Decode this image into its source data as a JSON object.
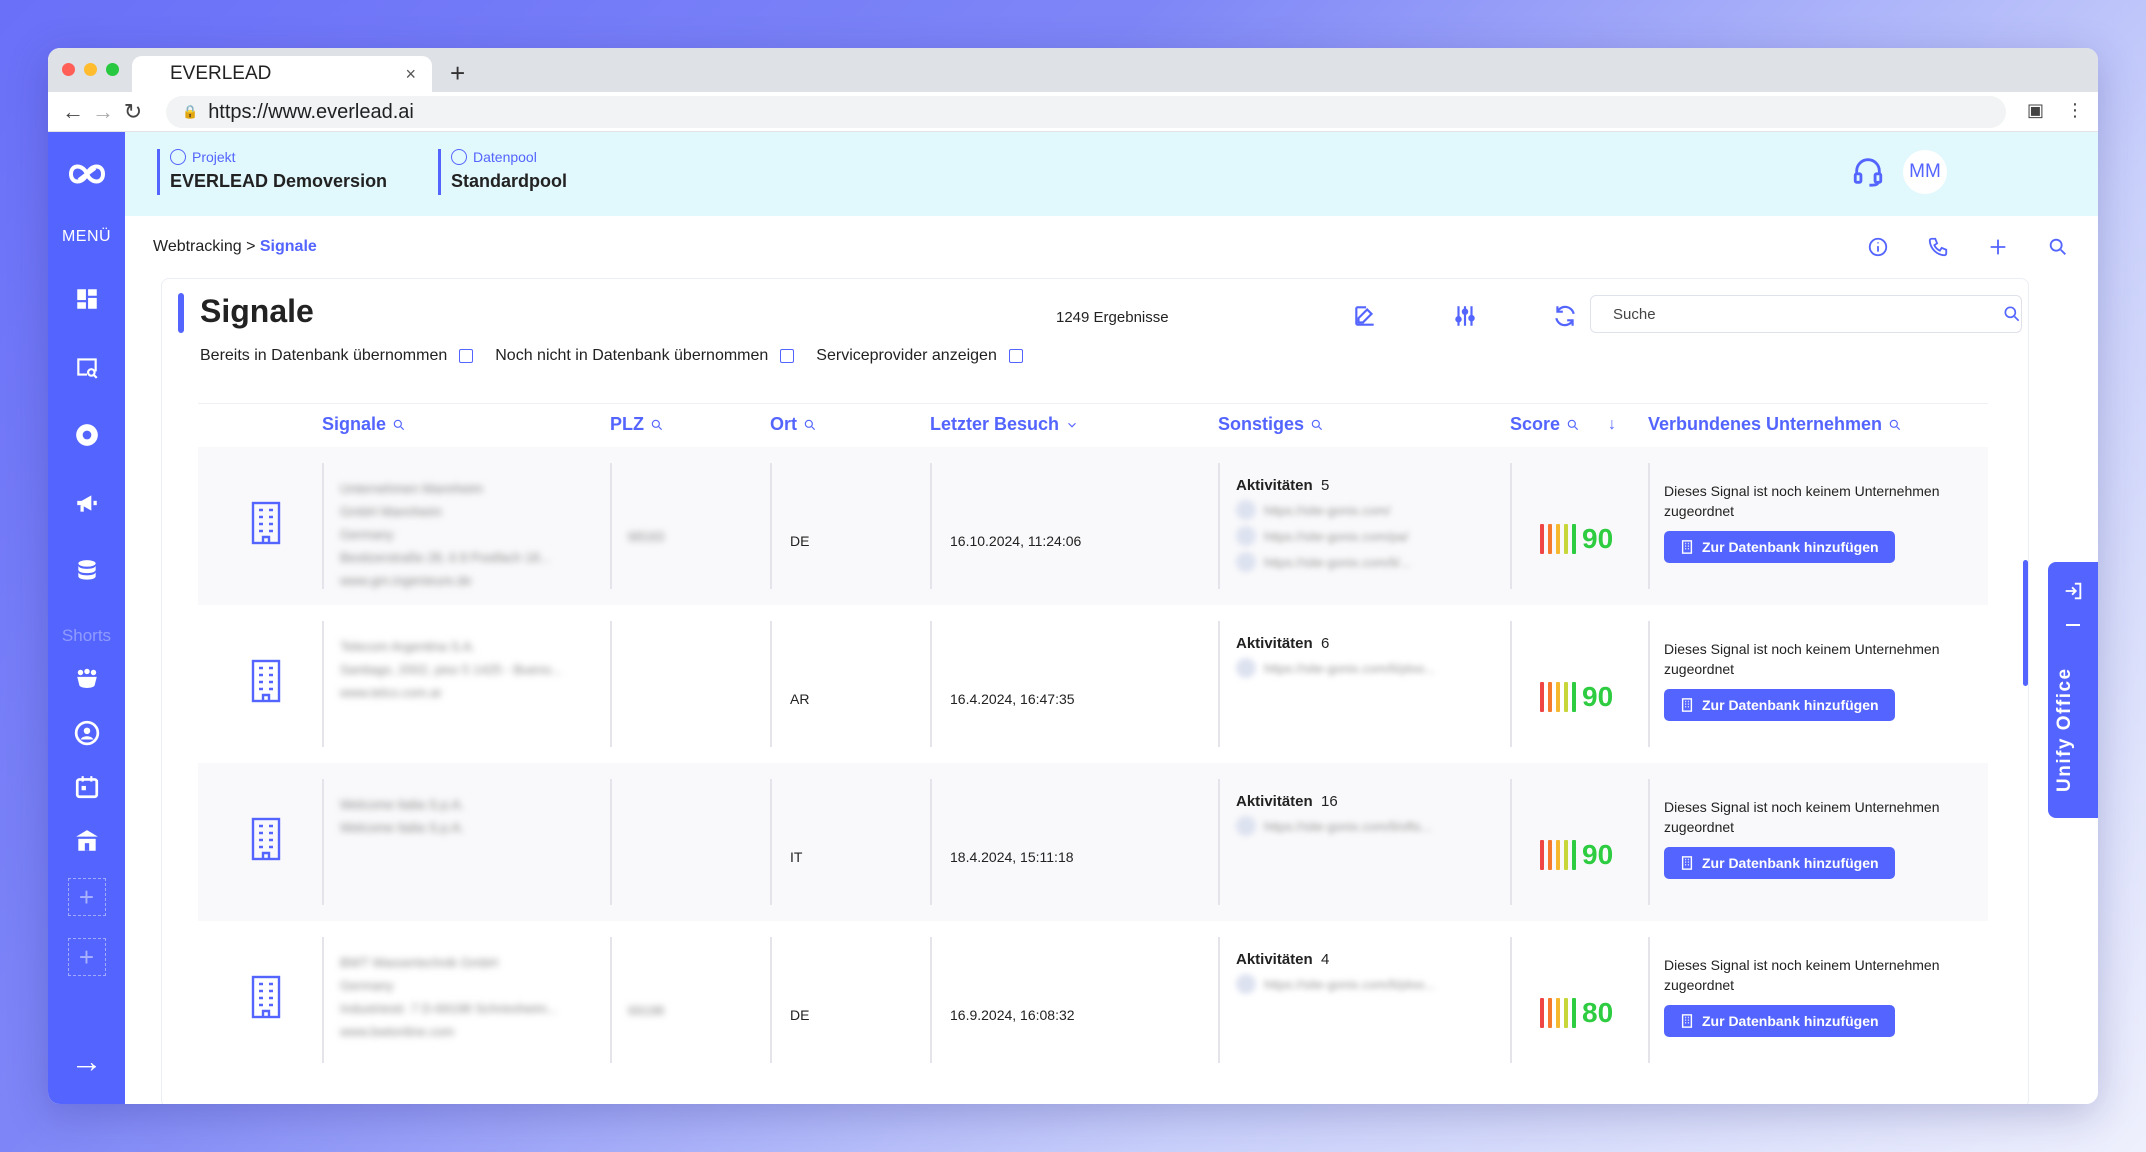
{
  "browser": {
    "tab_title": "EVERLEAD",
    "tab_close": "×",
    "new_tab": "+",
    "url": "https://www.everlead.ai"
  },
  "sidebar": {
    "menu_label": "MENÜ",
    "shorts_label": "Shorts"
  },
  "header": {
    "projekt_label": "Projekt",
    "projekt_value": "EVERLEAD Demoversion",
    "datenpool_label": "Datenpool",
    "datenpool_value": "Standardpool",
    "avatar_initials": "MM"
  },
  "breadcrumb": {
    "parent": "Webtracking",
    "separator": " > ",
    "current": "Signale"
  },
  "page": {
    "title": "Signale",
    "results": "1249 Ergebnisse",
    "search_placeholder": "Suche"
  },
  "filters": [
    "Bereits in Datenbank übernommen",
    "Noch nicht in Datenbank übernommen",
    "Serviceprovider anzeigen"
  ],
  "columns": {
    "signale": "Signale",
    "plz": "PLZ",
    "ort": "Ort",
    "letzter_besuch": "Letzter Besuch",
    "sonstiges": "Sonstiges",
    "score": "Score",
    "verbundenes": "Verbundenes Unternehmen"
  },
  "rows": [
    {
      "company_blur": [
        "Unternehmen Mannheim",
        "GmbH Mannheim",
        "Germany",
        "Besitzerstraße 28, 6 8 Postfach 18...",
        "www.gm.ingenieure.de"
      ],
      "plz_blur": "68163",
      "ort": "DE",
      "last_visit": "16.10.2024, 11:24:06",
      "aktivitaeten_label": "Aktivitäten",
      "aktivitaeten_count": "5",
      "links_blur": [
        "https://site-gonix.com/",
        "https://site-gonix.com/pa/",
        "https://site-gonix.com/li/..."
      ],
      "score": "90",
      "company_msg": "Dieses Signal ist noch keinem Unternehmen zugeordnet",
      "add_label": "Zur Datenbank hinzufügen"
    },
    {
      "company_blur": [
        "Telecom Argentina S.A.",
        "Santiago, 2002, piso 5 1425 - Bueno...",
        "www.telco.com.ar"
      ],
      "plz_blur": "",
      "ort": "AR",
      "last_visit": "16.4.2024, 16:47:35",
      "aktivitaeten_label": "Aktivitäten",
      "aktivitaeten_count": "6",
      "links_blur": [
        "https://site-gonix.com/li/ploo..."
      ],
      "score": "90",
      "company_msg": "Dieses Signal ist noch keinem Unternehmen zugeordnet",
      "add_label": "Zur Datenbank hinzufügen"
    },
    {
      "company_blur": [
        "Welcome Italia S.p.A.",
        "Welcome Italia S.p.A."
      ],
      "plz_blur": "",
      "ort": "IT",
      "last_visit": "18.4.2024, 15:11:18",
      "aktivitaeten_label": "Aktivitäten",
      "aktivitaeten_count": "16",
      "links_blur": [
        "https://site-gonix.com/li/ofts..."
      ],
      "score": "90",
      "company_msg": "Dieses Signal ist noch keinem Unternehmen zugeordnet",
      "add_label": "Zur Datenbank hinzufügen"
    },
    {
      "company_blur": [
        "BWT Wassertechnik GmbH",
        "Germany",
        "Industriestr. 7 D-69198 Schriesheim...",
        "www.bwtonline.com"
      ],
      "plz_blur": "69198",
      "ort": "DE",
      "last_visit": "16.9.2024, 16:08:32",
      "aktivitaeten_label": "Aktivitäten",
      "aktivitaeten_count": "4",
      "links_blur": [
        "https://site-gonix.com/li/ploo..."
      ],
      "score": "80",
      "company_msg": "Dieses Signal ist noch keinem Unternehmen zugeordnet",
      "add_label": "Zur Datenbank hinzufügen"
    }
  ],
  "unify_label": "Unify Office",
  "colors": {
    "accent": "#5465ff",
    "header_bg": "#e1f8fd",
    "score_green": "#2ecc40"
  }
}
